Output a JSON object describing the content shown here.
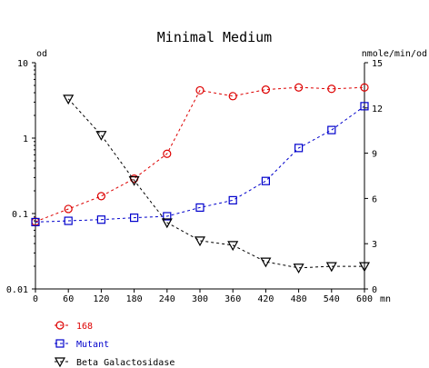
{
  "chart_data": {
    "type": "line",
    "title": "Minimal Medium",
    "x": [
      0,
      60,
      120,
      180,
      240,
      300,
      360,
      420,
      480,
      540,
      600
    ],
    "xlim": [
      0,
      600
    ],
    "x_ticks": [
      "0",
      "60",
      "120",
      "180",
      "240",
      "300",
      "360",
      "420",
      "480",
      "540",
      "600"
    ],
    "x_unit": "mn",
    "y_left": {
      "label": "od",
      "scale": "log",
      "lim": [
        0.01,
        10
      ],
      "ticks": [
        "0.01",
        "0.1",
        "1",
        "10"
      ]
    },
    "y_right": {
      "label": "nmole/min/od",
      "scale": "linear",
      "lim": [
        0,
        15
      ],
      "ticks": [
        "0",
        "3",
        "6",
        "9",
        "12",
        "15"
      ]
    },
    "series": [
      {
        "name": "168",
        "axis": "left",
        "color": "#dd0000",
        "marker": "circle",
        "x": [
          0,
          60,
          120,
          180,
          240,
          300,
          360,
          420,
          480,
          540,
          600
        ],
        "values": [
          0.078,
          0.115,
          0.17,
          0.29,
          0.62,
          4.3,
          3.6,
          4.4,
          4.7,
          4.5,
          4.7
        ]
      },
      {
        "name": "Mutant",
        "axis": "left",
        "color": "#0000cc",
        "marker": "square",
        "x": [
          0,
          60,
          120,
          180,
          240,
          300,
          360,
          420,
          480,
          540,
          600
        ],
        "values": [
          0.077,
          0.08,
          0.083,
          0.088,
          0.092,
          0.12,
          0.15,
          0.27,
          0.74,
          1.28,
          2.65
        ]
      },
      {
        "name": "Beta Galactosidase",
        "axis": "right",
        "color": "#000000",
        "marker": "triangle-down",
        "x": [
          60,
          120,
          180,
          240,
          300,
          360,
          420,
          480,
          540,
          600
        ],
        "values": [
          12.6,
          10.2,
          7.2,
          4.4,
          3.2,
          2.9,
          1.8,
          1.4,
          1.5,
          1.5
        ]
      }
    ],
    "grid": false,
    "legend_position": "bottom-left"
  }
}
